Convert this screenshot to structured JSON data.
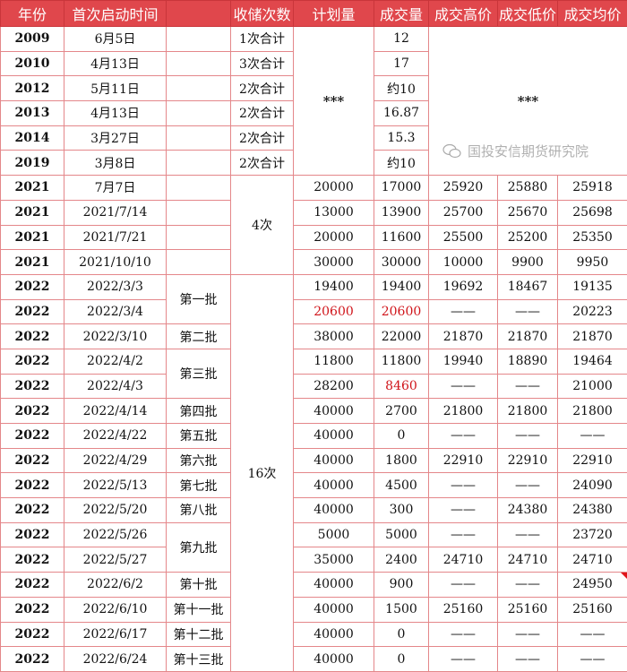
{
  "headers": [
    "年份",
    "首次启动时间",
    "",
    "收储次数",
    "计划量",
    "成交量",
    "成交高价",
    "成交低价",
    "成交均价"
  ],
  "early_plan": "***",
  "early_prices": "***",
  "group_2021_count": "4次",
  "group_2022_count": "16次",
  "rows": [
    {
      "year": "2009",
      "date": "6月5日",
      "batch": "",
      "count": "1次合计",
      "volume": "12"
    },
    {
      "year": "2010",
      "date": "4月13日",
      "batch": "",
      "count": "3次合计",
      "volume": "17"
    },
    {
      "year": "2012",
      "date": "5月11日",
      "batch": "",
      "count": "2次合计",
      "volume": "约10"
    },
    {
      "year": "2013",
      "date": "4月13日",
      "batch": "",
      "count": "2次合计",
      "volume": "16.87"
    },
    {
      "year": "2014",
      "date": "3月27日",
      "batch": "",
      "count": "2次合计",
      "volume": "15.3"
    },
    {
      "year": "2019",
      "date": "3月8日",
      "batch": "",
      "count": "2次合计",
      "volume": "约10"
    },
    {
      "year": "2021",
      "date": "7月7日",
      "batch": "",
      "plan": "20000",
      "volume": "17000",
      "high": "25920",
      "low": "25880",
      "avg": "25918"
    },
    {
      "year": "2021",
      "date": "2021/7/14",
      "batch": "",
      "plan": "13000",
      "volume": "13900",
      "high": "25700",
      "low": "25670",
      "avg": "25698"
    },
    {
      "year": "2021",
      "date": "2021/7/21",
      "batch": "",
      "plan": "20000",
      "volume": "11600",
      "high": "25500",
      "low": "25200",
      "avg": "25350"
    },
    {
      "year": "2021",
      "date": "2021/10/10",
      "batch": "",
      "plan": "30000",
      "volume": "30000",
      "high": "10000",
      "low": "9900",
      "avg": "9950"
    },
    {
      "year": "2022",
      "date": "2022/3/3",
      "batch": "第一批",
      "plan": "19400",
      "volume": "19400",
      "high": "19692",
      "low": "18467",
      "avg": "19135"
    },
    {
      "year": "2022",
      "date": "2022/3/4",
      "batch": null,
      "plan": "20600",
      "volume": "20600",
      "high": "——",
      "low": "——",
      "avg": "20223",
      "highlight": [
        "plan",
        "volume"
      ]
    },
    {
      "year": "2022",
      "date": "2022/3/10",
      "batch": "第二批",
      "plan": "38000",
      "volume": "22000",
      "high": "21870",
      "low": "21870",
      "avg": "21870"
    },
    {
      "year": "2022",
      "date": "2022/4/2",
      "batch": "第三批",
      "plan": "11800",
      "volume": "11800",
      "high": "19940",
      "low": "18890",
      "avg": "19464"
    },
    {
      "year": "2022",
      "date": "2022/4/3",
      "batch": null,
      "plan": "28200",
      "volume": "8460",
      "high": "——",
      "low": "——",
      "avg": "21000",
      "highlight": [
        "volume"
      ]
    },
    {
      "year": "2022",
      "date": "2022/4/14",
      "batch": "第四批",
      "plan": "40000",
      "volume": "2700",
      "high": "21800",
      "low": "21800",
      "avg": "21800"
    },
    {
      "year": "2022",
      "date": "2022/4/22",
      "batch": "第五批",
      "plan": "40000",
      "volume": "0",
      "high": "——",
      "low": "——",
      "avg": "——"
    },
    {
      "year": "2022",
      "date": "2022/4/29",
      "batch": "第六批",
      "plan": "40000",
      "volume": "1800",
      "high": "22910",
      "low": "22910",
      "avg": "22910"
    },
    {
      "year": "2022",
      "date": "2022/5/13",
      "batch": "第七批",
      "plan": "40000",
      "volume": "4500",
      "high": "——",
      "low": "——",
      "avg": "24090"
    },
    {
      "year": "2022",
      "date": "2022/5/20",
      "batch": "第八批",
      "plan": "40000",
      "volume": "300",
      "high": "——",
      "low": "24380",
      "avg": "24380"
    },
    {
      "year": "2022",
      "date": "2022/5/26",
      "batch": "第九批",
      "plan": "5000",
      "volume": "5000",
      "high": "——",
      "low": "——",
      "avg": "23720"
    },
    {
      "year": "2022",
      "date": "2022/5/27",
      "batch": null,
      "plan": "35000",
      "volume": "2400",
      "high": "24710",
      "low": "24710",
      "avg": "24710"
    },
    {
      "year": "2022",
      "date": "2022/6/2",
      "batch": "第十批",
      "plan": "40000",
      "volume": "900",
      "high": "——",
      "low": "——",
      "avg": "24950",
      "comment_marker": true
    },
    {
      "year": "2022",
      "date": "2022/6/10",
      "batch": "第十一批",
      "plan": "40000",
      "volume": "1500",
      "high": "25160",
      "low": "25160",
      "avg": "25160"
    },
    {
      "year": "2022",
      "date": "2022/6/17",
      "batch": "第十二批",
      "plan": "40000",
      "volume": "0",
      "high": "——",
      "low": "——",
      "avg": "——"
    },
    {
      "year": "2022",
      "date": "2022/6/24",
      "batch": "第十三批",
      "plan": "40000",
      "volume": "0",
      "high": "——",
      "low": "——",
      "avg": "——"
    }
  ],
  "watermark": "国投安信期货研究院",
  "colors": {
    "header_bg": "#e0474c",
    "highlight_text": "#d0141a",
    "grid": "#e4878a"
  }
}
